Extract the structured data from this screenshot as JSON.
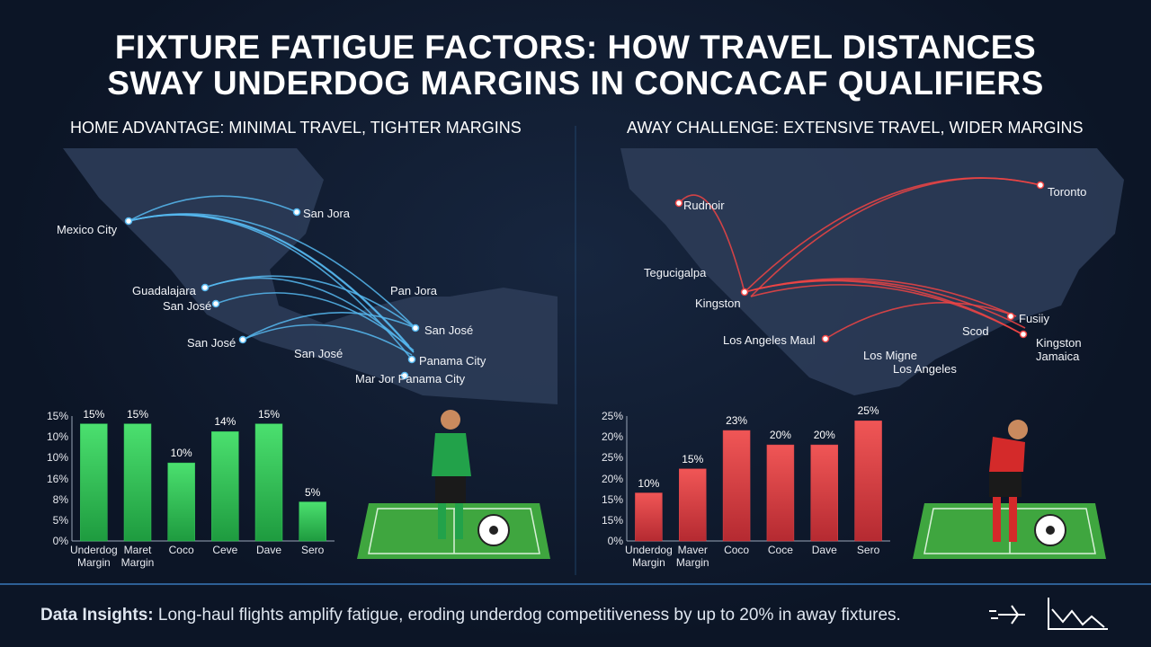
{
  "header": {
    "title_line1": "FIXTURE FATIGUE FACTORS: HOW TRAVEL DISTANCES",
    "title_line2": "SWAY UNDERDOG MARGINS IN CONCACAF QUALIFIERS"
  },
  "panels": [
    {
      "subtitle": "HOME ADVANTAGE: MINIMAL TRAVEL, TIGHTER MARGINS",
      "cities": [
        "Mexico City",
        "San Jora",
        "Guadalajara",
        "San José",
        "San José",
        "Pan Jora",
        "San José",
        "San José",
        "Panama City",
        "Mar Jor Panama City"
      ]
    },
    {
      "subtitle": "AWAY CHALLENGE: EXTENSIVE TRAVEL, WIDER MARGINS",
      "cities": [
        "Rudnoir",
        "Toronto",
        "Tegucigalpa",
        "Kingston",
        "Fusiiy",
        "Scod",
        "Los Angeles Maul",
        "Kingston\nJamaica",
        "Los Migne",
        "Los Angeles"
      ]
    }
  ],
  "chart_data": [
    {
      "type": "bar",
      "categories": [
        "Underdog\nMargin",
        "Maret\nMargin",
        "Coco",
        "Ceve",
        "Dave",
        "Sero"
      ],
      "values": [
        15,
        15,
        10,
        14,
        15,
        5
      ],
      "value_labels": [
        "15%",
        "15%",
        "10%",
        "14%",
        "15%",
        "5%"
      ],
      "y_axis_labels": [
        "15%",
        "10%",
        "10%",
        "16%",
        "8%",
        "5%",
        "0%"
      ],
      "ylim": [
        0,
        16
      ],
      "color": "#33c95a"
    },
    {
      "type": "bar",
      "categories": [
        "Underdog\nMargin",
        "Maver\nMargin",
        "Coco",
        "Coce",
        "Dave",
        "Sero"
      ],
      "values": [
        10,
        15,
        23,
        20,
        20,
        25
      ],
      "value_labels": [
        "10%",
        "15%",
        "23%",
        "20%",
        "20%",
        "25%"
      ],
      "y_axis_labels": [
        "25%",
        "20%",
        "25%",
        "20%",
        "15%",
        "15%",
        "0%"
      ],
      "ylim": [
        0,
        26
      ],
      "color": "#e0454a"
    }
  ],
  "footer": {
    "label": "Data Insights:",
    "text": "Long-haul flights amplify fatigue, eroding underdog competitiveness by up to 20% in away fixtures."
  }
}
